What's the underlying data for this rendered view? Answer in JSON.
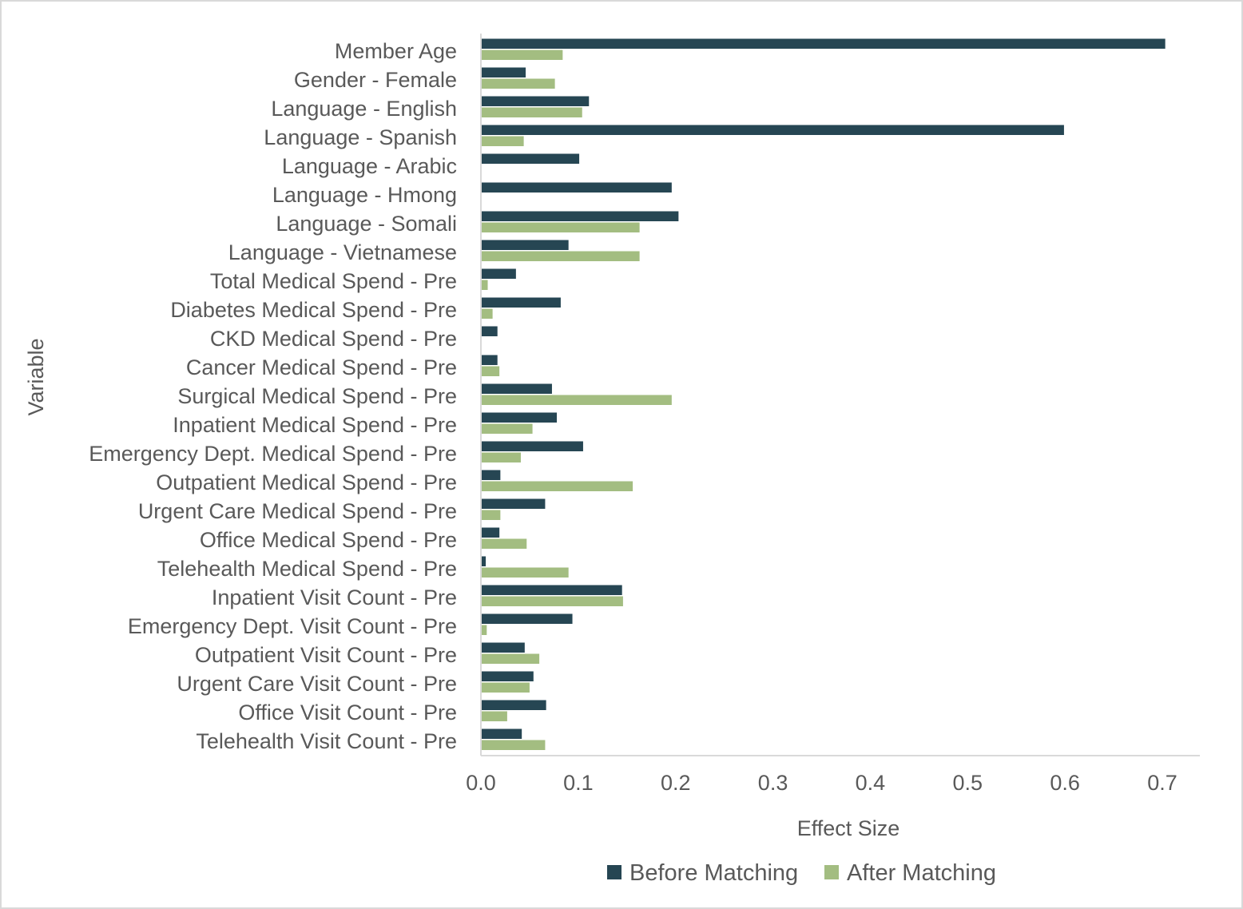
{
  "chart_data": {
    "type": "bar",
    "orientation": "horizontal",
    "xlabel": "Effect Size",
    "ylabel": "Variable",
    "xlim": [
      0,
      0.7
    ],
    "xticks": [
      0.0,
      0.1,
      0.2,
      0.3,
      0.4,
      0.5,
      0.6,
      0.7
    ],
    "xtick_labels": [
      "0.0",
      "0.1",
      "0.2",
      "0.3",
      "0.4",
      "0.5",
      "0.6",
      "0.7"
    ],
    "grid": false,
    "legend_position": "bottom",
    "categories": [
      "Member Age",
      "Gender - Female",
      "Language - English",
      "Language - Spanish",
      "Language - Arabic",
      "Language - Hmong",
      "Language - Somali",
      "Language - Vietnamese",
      "Total Medical Spend - Pre",
      "Diabetes Medical Spend - Pre",
      "CKD Medical Spend - Pre",
      "Cancer Medical Spend - Pre",
      "Surgical Medical Spend - Pre",
      "Inpatient Medical Spend - Pre",
      "Emergency Dept. Medical Spend - Pre",
      "Outpatient Medical Spend - Pre",
      "Urgent Care Medical Spend - Pre",
      "Office Medical Spend - Pre",
      "Telehealth Medical Spend - Pre",
      "Inpatient Visit Count - Pre",
      "Emergency Dept. Visit Count - Pre",
      "Outpatient Visit Count - Pre",
      "Urgent Care Visit Count - Pre",
      "Office Visit Count - Pre",
      "Telehealth Visit Count - Pre"
    ],
    "series": [
      {
        "name": "Before Matching",
        "color": "#264653",
        "values": [
          0.703,
          0.046,
          0.111,
          0.599,
          0.101,
          0.196,
          0.203,
          0.09,
          0.036,
          0.082,
          0.017,
          0.017,
          0.073,
          0.078,
          0.105,
          0.02,
          0.066,
          0.019,
          0.005,
          0.145,
          0.094,
          0.045,
          0.054,
          0.067,
          0.042
        ]
      },
      {
        "name": "After Matching",
        "color": "#a3bd81",
        "values": [
          0.084,
          0.076,
          0.104,
          0.044,
          0.0,
          0.0,
          0.163,
          0.163,
          0.007,
          0.012,
          0.0,
          0.019,
          0.196,
          0.053,
          0.041,
          0.156,
          0.02,
          0.047,
          0.09,
          0.146,
          0.006,
          0.06,
          0.05,
          0.027,
          0.066
        ]
      }
    ]
  }
}
